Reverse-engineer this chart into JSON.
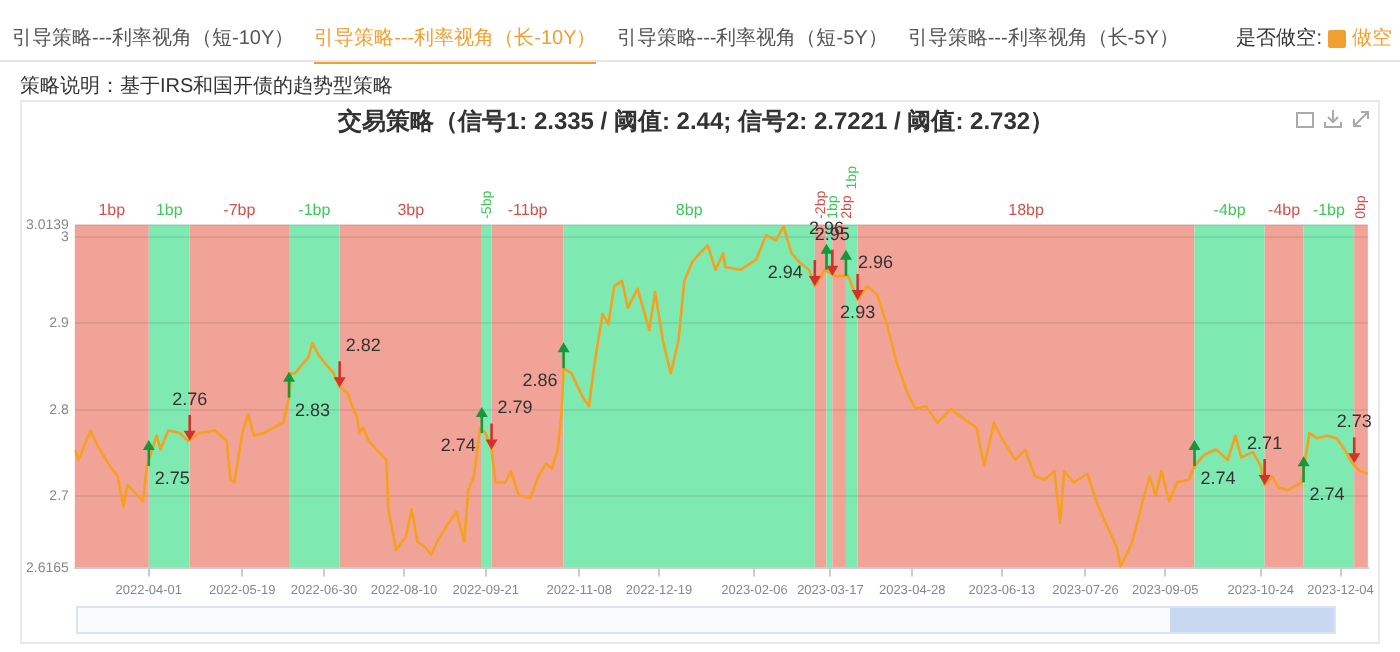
{
  "chart_data": {
    "type": "line",
    "title": "交易策略（信号1: 2.335 / 阈值: 2.44; 信号2: 2.7221 / 阈值: 2.732）",
    "x": [
      "2022-02-22",
      "2022-02-24",
      "2022-03-02",
      "2022-03-06",
      "2022-03-12",
      "2022-03-16",
      "2022-03-19",
      "2022-03-21",
      "2022-03-25",
      "2022-03-29",
      "2022-03-31",
      "2022-04-05",
      "2022-04-07",
      "2022-04-11",
      "2022-04-17",
      "2022-04-21",
      "2022-04-27",
      "2022-05-05",
      "2022-05-11",
      "2022-05-13",
      "2022-05-15",
      "2022-05-19",
      "2022-05-22",
      "2022-05-25",
      "2022-05-30",
      "2022-06-04",
      "2022-06-09",
      "2022-06-12",
      "2022-06-13",
      "2022-06-15",
      "2022-06-22",
      "2022-06-24",
      "2022-06-27",
      "2022-06-30",
      "2022-07-05",
      "2022-07-08",
      "2022-07-12",
      "2022-07-15",
      "2022-07-17",
      "2022-07-18",
      "2022-07-20",
      "2022-07-23",
      "2022-07-27",
      "2022-08-01",
      "2022-08-02",
      "2022-08-06",
      "2022-08-11",
      "2022-08-14",
      "2022-08-17",
      "2022-08-21",
      "2022-08-24",
      "2022-08-27",
      "2022-09-01",
      "2022-09-06",
      "2022-09-10",
      "2022-09-12",
      "2022-09-15",
      "2022-09-18",
      "2022-09-21",
      "2022-09-24",
      "2022-09-26",
      "2022-10-01",
      "2022-10-04",
      "2022-10-08",
      "2022-10-14",
      "2022-10-18",
      "2022-10-22",
      "2022-10-25",
      "2022-10-28",
      "2022-10-30",
      "2022-10-31",
      "2022-11-04",
      "2022-11-10",
      "2022-11-13",
      "2022-11-16",
      "2022-11-20",
      "2022-11-23",
      "2022-11-26",
      "2022-11-30",
      "2022-12-03",
      "2022-12-08",
      "2022-12-14",
      "2022-12-17",
      "2022-12-21",
      "2022-12-25",
      "2022-12-29",
      "2023-01-01",
      "2023-01-05",
      "2023-01-09",
      "2023-01-13",
      "2023-01-17",
      "2023-01-21",
      "2023-01-22",
      "2023-01-30",
      "2023-02-07",
      "2023-02-12",
      "2023-02-17",
      "2023-02-21",
      "2023-02-25",
      "2023-03-01",
      "2023-03-06",
      "2023-03-09",
      "2023-03-14",
      "2023-03-19",
      "2023-03-26",
      "2023-03-31",
      "2023-04-05",
      "2023-04-10",
      "2023-04-15",
      "2023-04-20",
      "2023-04-23",
      "2023-04-26",
      "2023-04-30",
      "2023-05-05",
      "2023-05-11",
      "2023-05-18",
      "2023-05-23",
      "2023-05-31",
      "2023-06-04",
      "2023-06-09",
      "2023-06-13",
      "2023-06-20",
      "2023-06-25",
      "2023-06-30",
      "2023-07-05",
      "2023-07-10",
      "2023-07-13",
      "2023-07-15",
      "2023-07-20",
      "2023-07-27",
      "2023-08-01",
      "2023-08-06",
      "2023-08-11",
      "2023-08-13",
      "2023-08-16",
      "2023-08-19",
      "2023-08-24",
      "2023-08-28",
      "2023-08-31",
      "2023-09-03",
      "2023-09-07",
      "2023-09-11",
      "2023-09-17",
      "2023-09-20",
      "2023-09-25",
      "2023-10-01",
      "2023-10-07",
      "2023-10-11",
      "2023-10-14",
      "2023-10-20",
      "2023-10-24",
      "2023-10-26",
      "2023-10-30",
      "2023-11-02",
      "2023-11-07",
      "2023-11-14",
      "2023-11-18",
      "2023-11-22",
      "2023-11-27",
      "2023-12-02",
      "2023-12-06",
      "2023-12-10",
      "2023-12-14",
      "2023-12-18"
    ],
    "series": [
      {
        "color": "#f5a11f",
        "values": [
          2.754,
          2.742,
          2.776,
          2.757,
          2.735,
          2.723,
          2.688,
          2.713,
          2.704,
          2.694,
          2.735,
          2.77,
          2.754,
          2.776,
          2.773,
          2.764,
          2.773,
          2.776,
          2.764,
          2.719,
          2.716,
          2.773,
          2.795,
          2.77,
          2.773,
          2.779,
          2.785,
          2.814,
          2.842,
          2.842,
          2.861,
          2.877,
          2.864,
          2.855,
          2.842,
          2.826,
          2.82,
          2.801,
          2.792,
          2.773,
          2.779,
          2.764,
          2.754,
          2.742,
          2.685,
          2.638,
          2.653,
          2.685,
          2.647,
          2.641,
          2.632,
          2.647,
          2.666,
          2.682,
          2.647,
          2.707,
          2.723,
          2.779,
          2.773,
          2.754,
          2.716,
          2.716,
          2.729,
          2.701,
          2.698,
          2.723,
          2.738,
          2.732,
          2.754,
          2.798,
          2.848,
          2.842,
          2.814,
          2.804,
          2.855,
          2.911,
          2.899,
          2.943,
          2.949,
          2.918,
          2.94,
          2.892,
          2.936,
          2.88,
          2.842,
          2.88,
          2.949,
          2.971,
          2.981,
          2.99,
          2.962,
          2.981,
          2.965,
          2.962,
          2.974,
          3.002,
          2.996,
          3.012,
          2.981,
          2.971,
          2.962,
          2.943,
          2.962,
          2.955,
          2.955,
          2.927,
          2.943,
          2.933,
          2.899,
          2.855,
          2.836,
          2.817,
          2.801,
          2.804,
          2.785,
          2.801,
          2.792,
          2.779,
          2.735,
          2.785,
          2.767,
          2.742,
          2.754,
          2.723,
          2.719,
          2.729,
          2.669,
          2.729,
          2.716,
          2.726,
          2.691,
          2.666,
          2.641,
          2.619,
          2.632,
          2.647,
          2.691,
          2.723,
          2.701,
          2.729,
          2.694,
          2.716,
          2.719,
          2.735,
          2.748,
          2.754,
          2.742,
          2.77,
          2.745,
          2.751,
          2.735,
          2.713,
          2.723,
          2.71,
          2.707,
          2.716,
          2.773,
          2.767,
          2.77,
          2.767,
          2.754,
          2.738,
          2.729,
          2.726
        ]
      }
    ],
    "xlim": [
      "2022-02-22",
      "2023-12-18"
    ],
    "xticks": [
      "2022-04-01",
      "2022-05-19",
      "2022-06-30",
      "2022-08-10",
      "2022-09-21",
      "2022-11-08",
      "2022-12-19",
      "2023-02-06",
      "2023-03-17",
      "2023-04-28",
      "2023-06-13",
      "2023-07-26",
      "2023-09-05",
      "2023-10-24",
      "2023-12-04"
    ],
    "ylim": [
      2.6165,
      3.0139
    ],
    "yticks": [
      2.6165,
      2.7,
      2.8,
      2.9,
      3,
      3.0139
    ],
    "grid": "y",
    "bands": [
      {
        "axis": "x",
        "from": "2022-02-22",
        "to": "2022-04-01",
        "label": "1bp",
        "color": "#f1a397"
      },
      {
        "axis": "x",
        "from": "2022-04-01",
        "to": "2022-04-22",
        "label": "1bp",
        "color": "#7ee9b1"
      },
      {
        "axis": "x",
        "from": "2022-04-22",
        "to": "2022-06-12",
        "label": "-7bp",
        "color": "#f1a397"
      },
      {
        "axis": "x",
        "from": "2022-06-12",
        "to": "2022-07-08",
        "label": "-1bp",
        "color": "#7ee9b1"
      },
      {
        "axis": "x",
        "from": "2022-07-08",
        "to": "2022-09-19",
        "label": "3bp",
        "color": "#f1a397"
      },
      {
        "axis": "x",
        "from": "2022-09-19",
        "to": "2022-09-24",
        "label": "-5bp",
        "color": "#7ee9b1"
      },
      {
        "axis": "x",
        "from": "2022-09-24",
        "to": "2022-10-31",
        "label": "-11bp",
        "color": "#f1a397"
      },
      {
        "axis": "x",
        "from": "2022-10-31",
        "to": "2023-03-09",
        "label": "8bp",
        "color": "#7ee9b1"
      },
      {
        "axis": "x",
        "from": "2023-03-09",
        "to": "2023-03-15",
        "label": "-2bp",
        "color": "#f1a397"
      },
      {
        "axis": "x",
        "from": "2023-03-15",
        "to": "2023-03-18",
        "label": "1bp",
        "color": "#7ee9b1"
      },
      {
        "axis": "x",
        "from": "2023-03-18",
        "to": "2023-03-25",
        "label": "2bp",
        "color": "#f1a397"
      },
      {
        "axis": "x",
        "from": "2023-03-25",
        "to": "2023-03-31",
        "label": "1bp",
        "color": "#7ee9b1"
      },
      {
        "axis": "x",
        "from": "2023-03-31",
        "to": "2023-09-20",
        "label": "18bp",
        "color": "#f1a397"
      },
      {
        "axis": "x",
        "from": "2023-09-20",
        "to": "2023-10-26",
        "label": "-4bp",
        "color": "#7ee9b1"
      },
      {
        "axis": "x",
        "from": "2023-10-26",
        "to": "2023-11-15",
        "label": "-4bp",
        "color": "#f1a397"
      },
      {
        "axis": "x",
        "from": "2023-11-15",
        "to": "2023-12-11",
        "label": "-1bp",
        "color": "#7ee9b1"
      },
      {
        "axis": "x",
        "from": "2023-12-11",
        "to": "2023-12-18",
        "label": "0bp",
        "color": "#f1a397"
      }
    ],
    "annotations": [
      "引导策略---利率视角（短-10Y）",
      "引导策略---利率视角（长-10Y）",
      "引导策略---利率视角（短-5Y）",
      "引导策略---利率视角（长-5Y）",
      "是否做空:",
      "做空",
      "策略说明：基于IRS和国开债的趋势型策略",
      {
        "text": "2.75",
        "x": "2022-04-01",
        "y": 2.735
      },
      {
        "text": "2.76",
        "x": "2022-04-22",
        "y": 2.764
      },
      {
        "text": "2.83",
        "x": "2022-06-12",
        "y": 2.814
      },
      {
        "text": "2.82",
        "x": "2022-07-08",
        "y": 2.826
      },
      {
        "text": "2.74",
        "x": "2022-09-19",
        "y": 2.773
      },
      {
        "text": "2.79",
        "x": "2022-09-24",
        "y": 2.754
      },
      {
        "text": "2.86",
        "x": "2022-10-31",
        "y": 2.848
      },
      {
        "text": "2.94",
        "x": "2023-03-09",
        "y": 2.943
      },
      {
        "text": "2.96",
        "x": "2023-03-15",
        "y": 2.962
      },
      {
        "text": "2.95",
        "x": "2023-03-18",
        "y": 2.955
      },
      {
        "text": "2.96",
        "x": "2023-03-25",
        "y": 2.955
      },
      {
        "text": "2.93",
        "x": "2023-03-31",
        "y": 2.927
      },
      {
        "text": "2.74",
        "x": "2023-09-20",
        "y": 2.735
      },
      {
        "text": "2.71",
        "x": "2023-10-26",
        "y": 2.713
      },
      {
        "text": "2.74",
        "x": "2023-11-15",
        "y": 2.716
      },
      {
        "text": "2.73",
        "x": "2023-12-11",
        "y": 2.738
      }
    ]
  }
}
